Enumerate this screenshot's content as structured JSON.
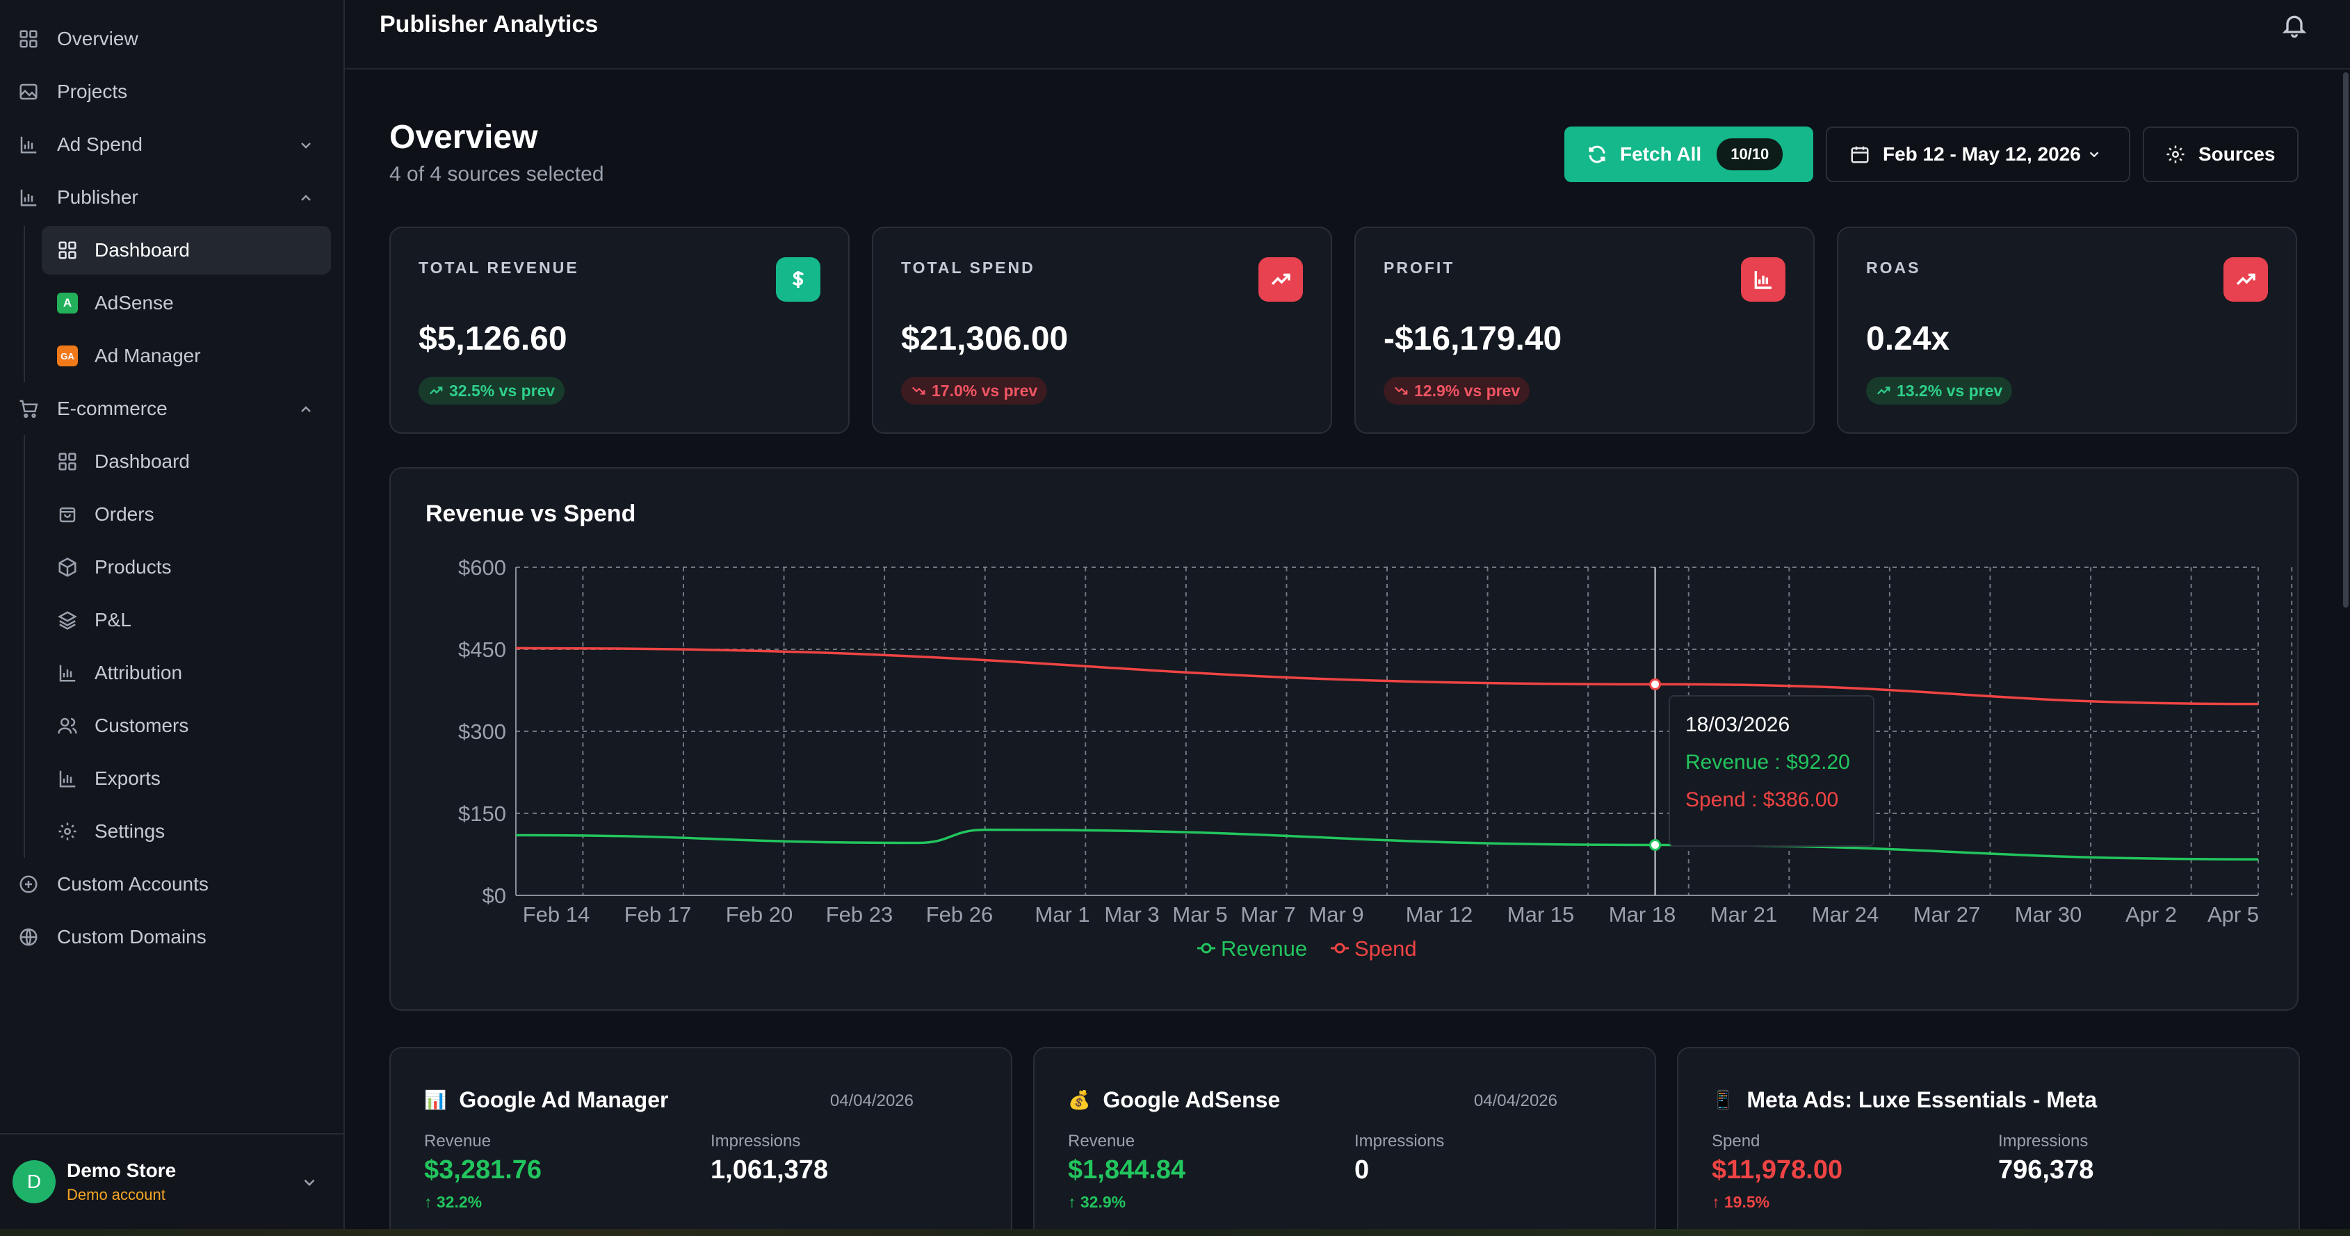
{
  "topbar": {
    "title": "Publisher Analytics"
  },
  "sidebar": {
    "items": [
      {
        "label": "Overview",
        "icon": "grid-icon"
      },
      {
        "label": "Projects",
        "icon": "image-icon"
      },
      {
        "label": "Ad Spend",
        "icon": "bar-chart-icon"
      },
      {
        "label": "Publisher",
        "icon": "bar-chart-icon"
      }
    ],
    "publisher_sub": [
      {
        "label": "Dashboard",
        "icon": "grid-icon"
      },
      {
        "label": "AdSense",
        "badge": "A"
      },
      {
        "label": "Ad Manager",
        "badge": "GA"
      }
    ],
    "ecommerce": {
      "label": "E-commerce",
      "icon": "cart-icon"
    },
    "ecommerce_sub": [
      {
        "label": "Dashboard",
        "icon": "grid-icon"
      },
      {
        "label": "Orders",
        "icon": "bag-icon"
      },
      {
        "label": "Products",
        "icon": "box-icon"
      },
      {
        "label": "P&L",
        "icon": "layers-icon"
      },
      {
        "label": "Attribution",
        "icon": "bar-chart-icon"
      },
      {
        "label": "Customers",
        "icon": "users-icon"
      },
      {
        "label": "Exports",
        "icon": "bar-chart-icon"
      },
      {
        "label": "Settings",
        "icon": "gear-icon"
      }
    ],
    "bottom_items": [
      {
        "label": "Custom Accounts",
        "icon": "plus-circle-icon"
      },
      {
        "label": "Custom Domains",
        "icon": "globe-icon"
      }
    ],
    "account": {
      "initial": "D",
      "name": "Demo Store",
      "subtitle": "Demo account"
    }
  },
  "overview": {
    "title": "Overview",
    "subtitle": "4 of 4 sources selected",
    "fetch_label": "Fetch All",
    "fetch_count": "10/10",
    "date_range": "Feb 12 - May 12, 2026",
    "sources_label": "Sources"
  },
  "kpis": [
    {
      "label": "TOTAL REVENUE",
      "value": "$5,126.60",
      "delta": "32.5% vs prev",
      "direction": "up",
      "icon": "dollar-icon",
      "icon_color": "#14b88a"
    },
    {
      "label": "TOTAL SPEND",
      "value": "$21,306.00",
      "delta": "17.0% vs prev",
      "direction": "down",
      "icon": "trending-up-icon",
      "icon_color": "#e8414f"
    },
    {
      "label": "PROFIT",
      "value": "-$16,179.40",
      "delta": "12.9% vs prev",
      "direction": "down",
      "icon": "bar-chart-icon",
      "icon_color": "#e8414f"
    },
    {
      "label": "ROAS",
      "value": "0.24x",
      "delta": "13.2% vs prev",
      "direction": "up",
      "icon": "trending-up-icon",
      "icon_color": "#e8414f"
    }
  ],
  "chart_data": {
    "type": "line",
    "title": "Revenue vs Spend",
    "x_ticks": [
      "Feb 14",
      "Feb 17",
      "Feb 20",
      "Feb 23",
      "Feb 26",
      "Mar 1",
      "Mar 3",
      "Mar 5",
      "Mar 7",
      "Mar 9",
      "Mar 12",
      "Mar 15",
      "Mar 18",
      "Mar 21",
      "Mar 24",
      "Mar 27",
      "Mar 30",
      "Apr 2",
      "Apr 5"
    ],
    "y_ticks": [
      "$0",
      "$150",
      "$300",
      "$450",
      "$600"
    ],
    "ylim": [
      0,
      600
    ],
    "grid": true,
    "legend_position": "bottom-center",
    "series": [
      {
        "name": "Revenue",
        "color": "#22c55e",
        "points": [
          [
            "2026-02-12",
            110
          ],
          [
            "2026-02-24",
            96
          ],
          [
            "2026-02-26",
            120
          ],
          [
            "2026-03-18",
            92.2
          ],
          [
            "2026-04-05",
            66
          ]
        ]
      },
      {
        "name": "Spend",
        "color": "#ef4444",
        "points": [
          [
            "2026-02-12",
            452
          ],
          [
            "2026-03-18",
            386
          ],
          [
            "2026-04-05",
            350
          ]
        ]
      }
    ],
    "tooltip": {
      "date": "18/03/2026",
      "revenue": "Revenue : $92.20",
      "spend": "Spend : $386.00"
    }
  },
  "sources": [
    {
      "emoji": "📊",
      "name": "Google Ad Manager",
      "date": "04/04/2026",
      "m1_label": "Revenue",
      "m1_value": "$3,281.76",
      "m1_delta": "↑ 32.2%",
      "m1_color": "green",
      "m2_label": "Impressions",
      "m2_value": "1,061,378"
    },
    {
      "emoji": "💰",
      "name": "Google AdSense",
      "date": "04/04/2026",
      "m1_label": "Revenue",
      "m1_value": "$1,844.84",
      "m1_delta": "↑ 32.9%",
      "m1_color": "green",
      "m2_label": "Impressions",
      "m2_value": "0"
    },
    {
      "emoji": "📱",
      "name": "Meta Ads: Luxe Essentials - Meta",
      "date": "",
      "m1_label": "Spend",
      "m1_value": "$11,978.00",
      "m1_delta": "↑ 19.5%",
      "m1_color": "red",
      "m2_label": "Impressions",
      "m2_value": "796,378"
    }
  ]
}
